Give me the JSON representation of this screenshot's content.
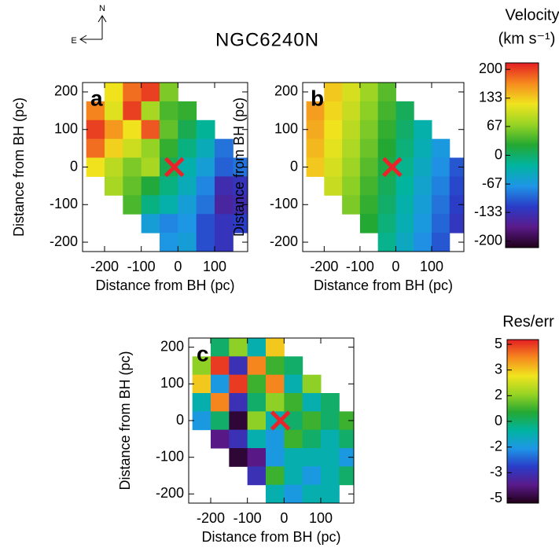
{
  "compass": {
    "north": "N",
    "east": "E"
  },
  "colormap": [
    "#200018",
    "#5a1a8a",
    "#2a3cc8",
    "#1e96e6",
    "#00b4a0",
    "#24a832",
    "#98d424",
    "#f0e41e",
    "#f68a1e",
    "#e41e24"
  ],
  "chart_data": [
    {
      "type": "heatmap",
      "title": "NGC6240N",
      "label": "a",
      "xlabel": "Distance from BH (pc)",
      "ylabel": "Distance from BH (pc)",
      "x": [
        -225,
        -175,
        -125,
        -75,
        -25,
        25,
        75,
        125,
        175
      ],
      "y": [
        200,
        150,
        100,
        50,
        0,
        -50,
        -100,
        -150,
        -200
      ],
      "values": [
        [
          null,
          120,
          180,
          200,
          60,
          null,
          null,
          null,
          null
        ],
        [
          170,
          110,
          200,
          80,
          40,
          30,
          null,
          null,
          null
        ],
        [
          200,
          160,
          120,
          190,
          50,
          10,
          -20,
          null,
          null
        ],
        [
          180,
          130,
          100,
          70,
          30,
          -10,
          -40,
          -90,
          null
        ],
        [
          120,
          90,
          60,
          80,
          10,
          -30,
          -60,
          -100,
          -90
        ],
        [
          null,
          80,
          50,
          20,
          -10,
          -40,
          -80,
          -140,
          -130
        ],
        [
          null,
          null,
          40,
          -10,
          -30,
          -60,
          -90,
          -150,
          -140
        ],
        [
          null,
          null,
          null,
          -60,
          -80,
          -70,
          -110,
          -130,
          -120
        ],
        [
          null,
          null,
          null,
          null,
          -70,
          -60,
          -110,
          -130,
          null
        ]
      ],
      "xlim": [
        -260,
        190
      ],
      "ylim": [
        -225,
        225
      ],
      "xticks": [
        -200,
        -100,
        0,
        100
      ],
      "yticks": [
        200,
        100,
        0,
        -100,
        -200
      ],
      "marker": {
        "x": -10,
        "y": 0
      },
      "clim": [
        -215,
        215
      ],
      "colorbar": {
        "title": "Velocity",
        "unit": "(km s⁻¹)",
        "lim": [
          -215,
          215
        ],
        "ticks": [
          200,
          133,
          67,
          0,
          -67,
          -133,
          -200
        ]
      }
    },
    {
      "type": "heatmap",
      "label": "b",
      "xlabel": "Distance from BH (pc)",
      "ylabel": "Distance from BH (pc)",
      "x": [
        -225,
        -175,
        -125,
        -75,
        -25,
        25,
        75,
        125,
        175
      ],
      "y": [
        200,
        150,
        100,
        50,
        0,
        -50,
        -100,
        -150,
        -200
      ],
      "values": [
        [
          null,
          135,
          105,
          75,
          45,
          null,
          null,
          null,
          null
        ],
        [
          157,
          127,
          97,
          67,
          37,
          7,
          null,
          null,
          null
        ],
        [
          150,
          120,
          90,
          60,
          30,
          0,
          -30,
          null,
          null
        ],
        [
          143,
          113,
          83,
          53,
          23,
          -7,
          -37,
          -67,
          null
        ],
        [
          135,
          105,
          75,
          45,
          15,
          -15,
          -45,
          -75,
          -105
        ],
        [
          null,
          97,
          67,
          37,
          7,
          -23,
          -53,
          -83,
          -113
        ],
        [
          null,
          null,
          60,
          30,
          0,
          -30,
          -60,
          -90,
          -120
        ],
        [
          null,
          null,
          null,
          23,
          -7,
          -37,
          -67,
          -97,
          -127
        ],
        [
          null,
          null,
          null,
          null,
          -15,
          -45,
          -75,
          -105,
          null
        ]
      ],
      "xlim": [
        -260,
        190
      ],
      "ylim": [
        -225,
        225
      ],
      "xticks": [
        -200,
        -100,
        0,
        100
      ],
      "yticks": [
        200,
        100,
        0,
        -100,
        -200
      ],
      "marker": {
        "x": -10,
        "y": 0
      },
      "clim": [
        -215,
        215
      ]
    },
    {
      "type": "heatmap",
      "label": "c",
      "xlabel": "Distance from BH (pc)",
      "ylabel": "Distance from BH (pc)",
      "x": [
        -225,
        -175,
        -125,
        -75,
        -25,
        25,
        75,
        125,
        175
      ],
      "y": [
        200,
        150,
        100,
        50,
        0,
        -50,
        -100,
        -150,
        -200
      ],
      "values": [
        [
          null,
          0,
          2,
          -1,
          3,
          null,
          null,
          null,
          null
        ],
        [
          2,
          5,
          -3,
          4,
          1,
          0,
          null,
          null,
          null
        ],
        [
          3,
          -2,
          5,
          1,
          4,
          -1,
          2,
          null,
          null
        ],
        [
          -1,
          4,
          -3,
          0,
          2,
          1,
          -1,
          0,
          null
        ],
        [
          -2,
          0,
          -5,
          2,
          -1,
          0,
          1,
          0,
          1
        ],
        [
          null,
          -4,
          -3,
          -1,
          -2,
          1,
          0,
          -1,
          0
        ],
        [
          null,
          null,
          -5,
          -4,
          -2,
          -1,
          -1,
          -1,
          -2
        ],
        [
          null,
          null,
          null,
          -3,
          1,
          -1,
          -2,
          -1,
          0
        ],
        [
          null,
          null,
          null,
          null,
          -1,
          -2,
          -1,
          -1,
          null
        ]
      ],
      "xlim": [
        -260,
        190
      ],
      "ylim": [
        -225,
        225
      ],
      "xticks": [
        -200,
        -100,
        0,
        100
      ],
      "yticks": [
        200,
        100,
        0,
        -100,
        -200
      ],
      "marker": {
        "x": -10,
        "y": 0
      },
      "colorbar": {
        "title": "Res/err",
        "ticks": [
          5,
          3,
          2,
          0,
          -2,
          -3,
          -5
        ]
      }
    }
  ]
}
